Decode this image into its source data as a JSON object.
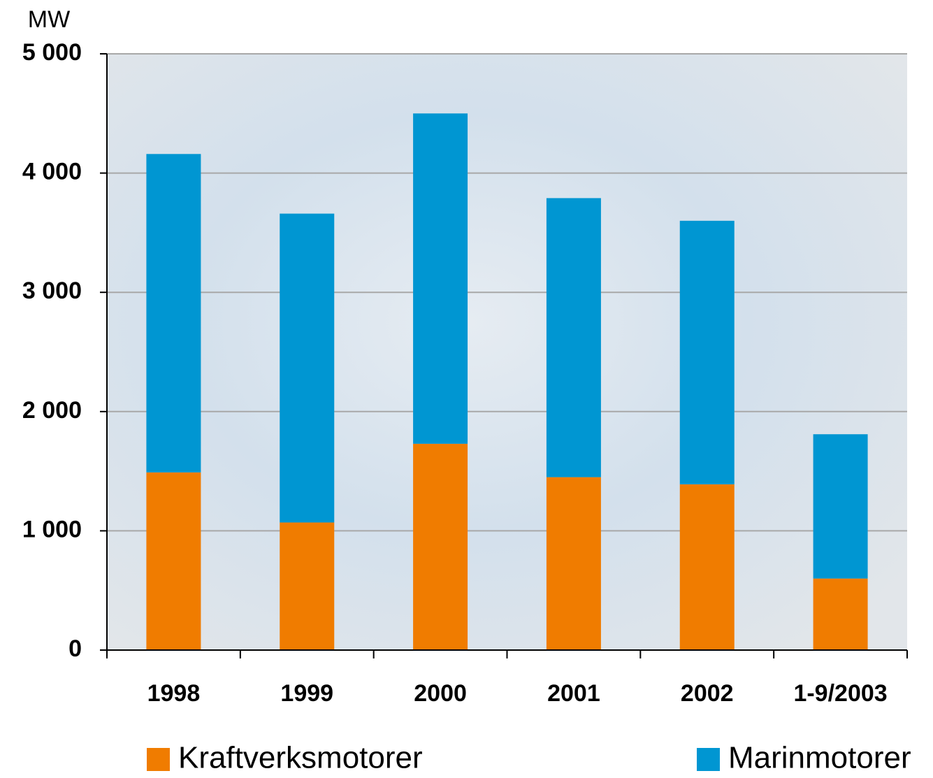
{
  "chart_data": {
    "type": "stacked-bar",
    "y_label": "MW",
    "categories": [
      "1998",
      "1999",
      "2000",
      "2001",
      "2002",
      "1-9/2003"
    ],
    "series": [
      {
        "name": "Kraftverksmotorer",
        "color": "#f07c00",
        "values": [
          1490,
          1070,
          1730,
          1450,
          1390,
          600
        ]
      },
      {
        "name": "Marinmotorer",
        "color": "#0096d2",
        "values": [
          2670,
          2590,
          2770,
          2340,
          2210,
          1210
        ]
      }
    ],
    "ylim": [
      0,
      5000
    ],
    "yticks": [
      0,
      {
        "value": 1000,
        "label": "1 000"
      },
      {
        "value": 2000,
        "label": "2 000"
      },
      {
        "value": 3000,
        "label": "3 000"
      },
      {
        "value": 4000,
        "label": "4 000"
      },
      {
        "value": 5000,
        "label": "5 000"
      }
    ],
    "grid": true
  }
}
